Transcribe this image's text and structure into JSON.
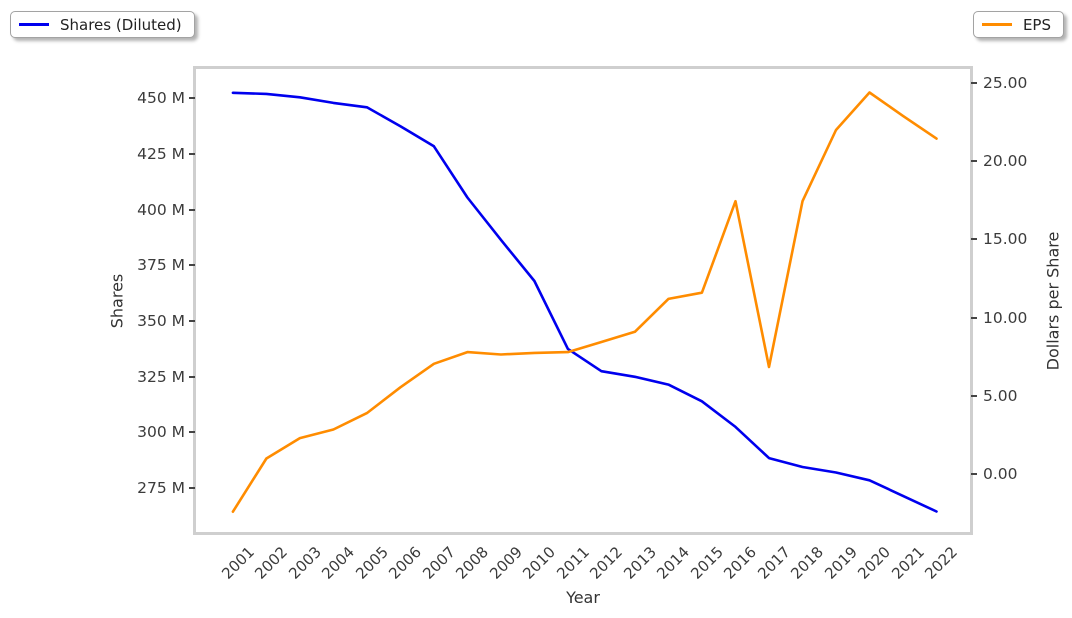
{
  "legends": {
    "shares": {
      "label": "Shares (Diluted)",
      "color": "#0000ee"
    },
    "eps": {
      "label": "EPS",
      "color": "#ff8c00"
    }
  },
  "chart_data": {
    "type": "line",
    "title": "",
    "xlabel": "Year",
    "ylabel_left": "Shares",
    "ylabel_right": "Dollars per Share",
    "grid": false,
    "legend_position": "outside top-left (Shares) and outside top-right (EPS)",
    "x": [
      2001,
      2002,
      2003,
      2004,
      2005,
      2006,
      2007,
      2008,
      2009,
      2010,
      2011,
      2012,
      2013,
      2014,
      2015,
      2016,
      2017,
      2018,
      2019,
      2020,
      2021,
      2022
    ],
    "xlim": [
      1999.9,
      2023.0
    ],
    "ylim_left": [
      255.3,
      463.2
    ],
    "ylim_right": [
      -3.7,
      25.9
    ],
    "yticks_left": {
      "values": [
        450,
        425,
        400,
        375,
        350,
        325,
        300,
        275
      ],
      "labels": [
        "450 M",
        "425 M",
        "400 M",
        "375 M",
        "350 M",
        "325 M",
        "300 M",
        "275 M"
      ]
    },
    "yticks_right": {
      "values": [
        25,
        20,
        15,
        10,
        5,
        0
      ],
      "labels": [
        "25.00",
        "20.00",
        "15.00",
        "10.00",
        "5.00",
        "0.00"
      ]
    },
    "series": [
      {
        "name": "Shares (Diluted)",
        "yaxis": "left",
        "unit": "millions of shares",
        "color": "#0000ee",
        "values": [
          452.5,
          452,
          450.5,
          448,
          446,
          437.5,
          428.5,
          405.5,
          386.5,
          368,
          337.5,
          327.5,
          325,
          321.5,
          314,
          302.5,
          288.5,
          284.5,
          282,
          278.5,
          271.5,
          264.5
        ]
      },
      {
        "name": "EPS",
        "yaxis": "right",
        "unit": "dollars per share",
        "color": "#ff8c00",
        "values": [
          -2.4,
          1.0,
          2.3,
          2.85,
          3.9,
          5.55,
          7.05,
          7.8,
          7.65,
          7.75,
          7.8,
          8.45,
          9.1,
          11.2,
          11.6,
          17.45,
          6.85,
          17.45,
          22.0,
          24.4,
          22.9,
          21.45
        ]
      }
    ]
  }
}
